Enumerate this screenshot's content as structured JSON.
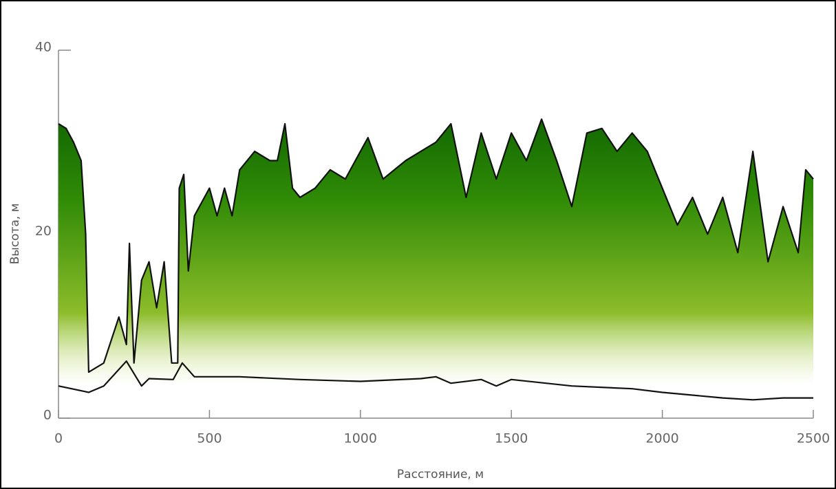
{
  "chart_data": {
    "type": "line",
    "xlabel": "Расстояние, м",
    "ylabel": "Высота, м",
    "xlim": [
      0,
      2500
    ],
    "xticks": [
      0,
      500,
      1000,
      1500,
      2000,
      2500
    ],
    "ylim": [
      0,
      40
    ],
    "yticks": [
      0,
      20,
      40
    ],
    "fill": [
      "#0a5e00",
      "#2f8a06",
      "#8cbc2a",
      "#d8eaa0"
    ],
    "series": [
      {
        "color": "#111111",
        "fill_under": true,
        "x": [
          0,
          25,
          50,
          75,
          90,
          100,
          150,
          200,
          225,
          235,
          250,
          275,
          300,
          325,
          350,
          375,
          395,
          400,
          415,
          430,
          450,
          500,
          525,
          550,
          575,
          600,
          650,
          700,
          725,
          750,
          775,
          800,
          850,
          900,
          950,
          1000,
          1025,
          1075,
          1150,
          1200,
          1250,
          1300,
          1350,
          1400,
          1450,
          1500,
          1550,
          1600,
          1650,
          1700,
          1750,
          1800,
          1850,
          1900,
          1950,
          2000,
          2050,
          2100,
          2150,
          2200,
          2250,
          2300,
          2350,
          2400,
          2450,
          2475,
          2500
        ],
        "values": [
          32,
          31.5,
          30,
          28,
          20,
          5,
          6,
          11,
          8,
          19,
          6,
          15,
          17,
          12,
          17,
          6,
          6,
          25,
          26.5,
          16,
          22,
          25,
          22,
          25,
          22,
          27,
          29,
          28,
          28,
          32,
          25,
          24,
          25,
          27,
          26,
          29,
          30.5,
          26,
          28,
          29,
          30,
          32,
          24,
          31,
          26,
          31,
          28,
          32.5,
          28,
          23,
          31,
          31.5,
          29,
          31,
          29,
          25,
          21,
          24,
          20,
          24,
          18,
          29,
          17,
          23,
          18,
          27,
          26
        ]
      },
      {
        "color": "#111111",
        "x": [
          0,
          100,
          150,
          225,
          275,
          300,
          380,
          410,
          450,
          600,
          800,
          1000,
          1200,
          1250,
          1300,
          1400,
          1450,
          1500,
          1700,
          1900,
          2000,
          2200,
          2300,
          2400,
          2500
        ],
        "values": [
          3.5,
          2.8,
          3.5,
          6.2,
          3.5,
          4.3,
          4.2,
          6,
          4.5,
          4.5,
          4.2,
          4,
          4.3,
          4.5,
          3.8,
          4.2,
          3.5,
          4.2,
          3.5,
          3.2,
          2.8,
          2.2,
          2,
          2.2,
          2.2
        ]
      }
    ]
  }
}
